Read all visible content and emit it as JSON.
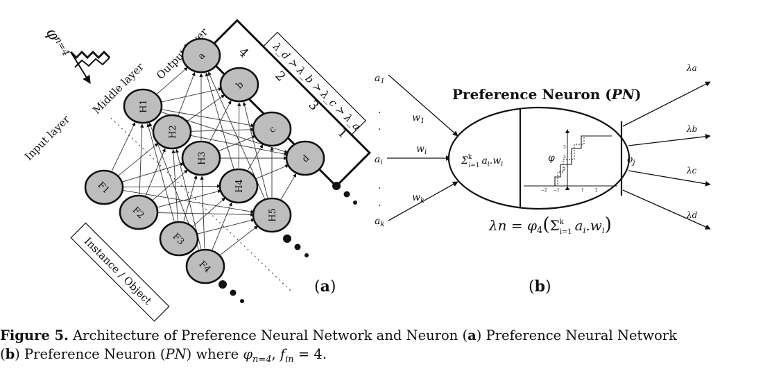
{
  "diagram_a": {
    "phi_label": "φ",
    "phi_sub": "n=4",
    "layer_labels": {
      "input": "Input layer",
      "middle": "Middle layer",
      "output": "Output layer"
    },
    "ranking": "λ_d ≻ λ_b ≻ λ_c ≻ λ_a",
    "rank_numbers": {
      "four": "4",
      "two": "2",
      "three": "3",
      "one": "1"
    },
    "instance_box": "Instance / Object",
    "input_nodes": [
      "F1",
      "F2",
      "F3",
      "F4"
    ],
    "hidden_nodes": [
      "H1",
      "H2",
      "H3",
      "H4",
      "H5"
    ],
    "output_nodes": [
      "a",
      "b",
      "c",
      "d"
    ],
    "panel_label": "a"
  },
  "diagram_b": {
    "title_text": "Preference Neuron (",
    "title_ital": "PN",
    "title_close": ")",
    "inputs": [
      "a1",
      "ai",
      "ak"
    ],
    "weights": [
      "w1",
      "wi",
      "wk"
    ],
    "dots": ".",
    "sum_label": "Σ_{i=1}^{k} a_i.w_i",
    "phi": "φ",
    "output_var": "o_j",
    "outputs": [
      "λa",
      "λb",
      "λc",
      "λd"
    ],
    "axis_ticks": [
      "−2",
      "−1",
      "1",
      "2"
    ],
    "y_ticks": [
      "1",
      "2",
      "3"
    ],
    "formula": "λn = φ4(Σ_{i=1}^{k} a_i.w_i)",
    "panel_label": "b"
  },
  "caption": {
    "label": "Figure 5.",
    "text1": " Architecture of Preference Neural Network and Neuron (",
    "a": "a",
    "text2": ") Preference Neural Network",
    "text3": "(",
    "b": "b",
    "text4": ") Preference Neuron (",
    "pn": "PN",
    "text5": ") where ",
    "phi": "φ",
    "phi_sub": "n=4",
    "comma": ", ",
    "f": "f",
    "f_sub": "in",
    "tail": " = 4."
  }
}
